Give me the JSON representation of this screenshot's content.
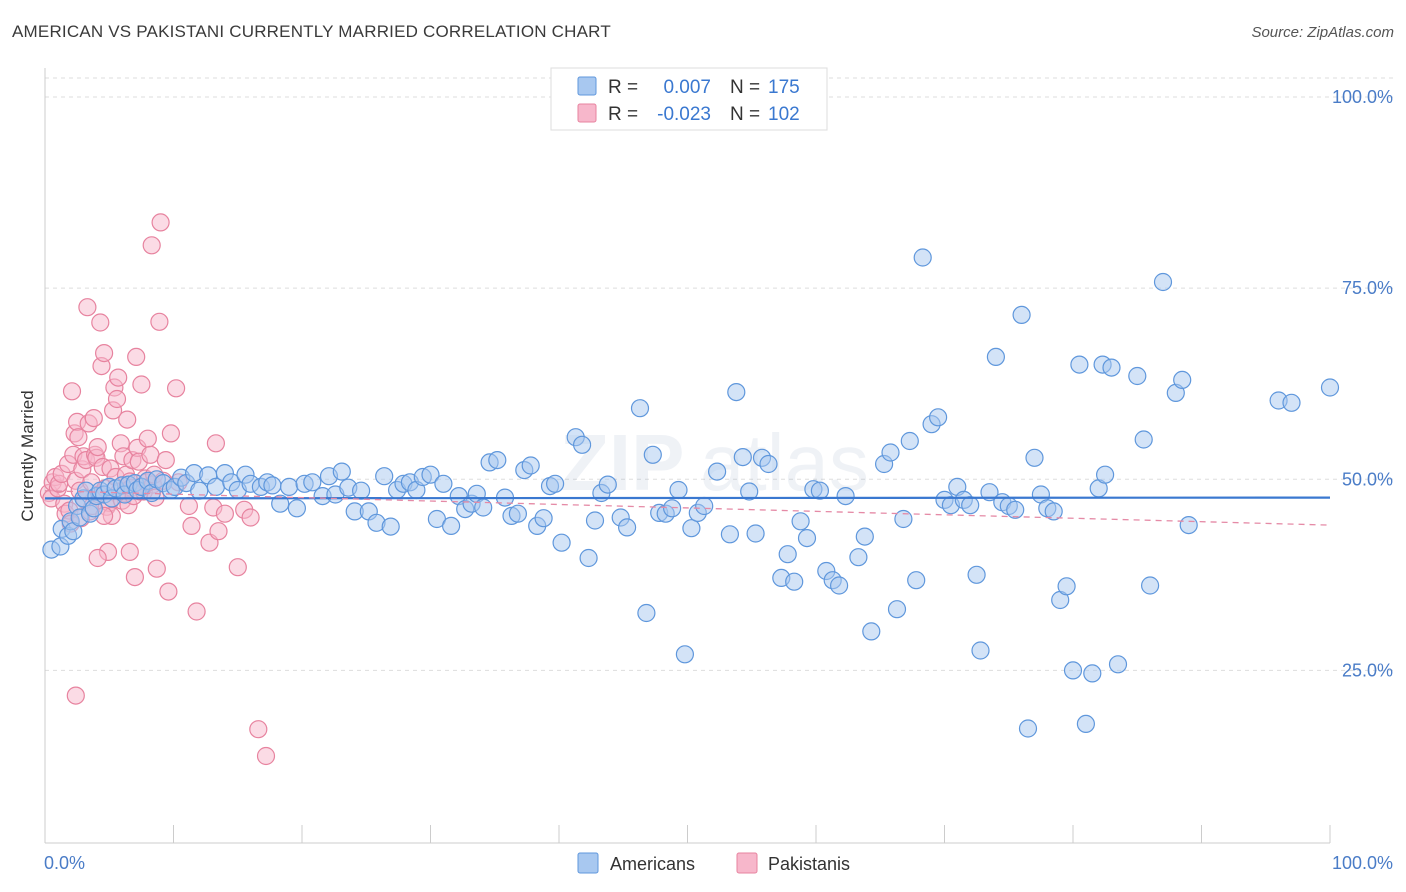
{
  "title": "AMERICAN VS PAKISTANI CURRENTLY MARRIED CORRELATION CHART",
  "source": "Source: ZipAtlas.com",
  "watermark": "ZIPatlas",
  "legend_top": {
    "americans": {
      "r_label": "R =",
      "r_value": "0.007",
      "n_label": "N =",
      "n_value": "175"
    },
    "pakistanis": {
      "r_label": "R =",
      "r_value": "-0.023",
      "n_label": "N =",
      "n_value": "102"
    }
  },
  "legend_bottom": {
    "americans": "Americans",
    "pakistanis": "Pakistanis"
  },
  "colors": {
    "blue_fill": "#a8c8f0",
    "blue_stroke": "#5f97dc",
    "blue_line": "#3a78d0",
    "pink_fill": "#f7b7cb",
    "pink_stroke": "#e7839f",
    "pink_line": "#e58aa6",
    "axis_text": "#4a7cc7",
    "grid": "#dddddd"
  },
  "chart_data": {
    "type": "scatter",
    "title": "AMERICAN VS PAKISTANI CURRENTLY MARRIED CORRELATION CHART",
    "xlabel": "",
    "ylabel": "Currently Married",
    "xlim": [
      0,
      100
    ],
    "ylim": [
      0,
      100
    ],
    "x_tick_labels": [
      "0.0%",
      "100.0%"
    ],
    "y_ticks": [
      25,
      50,
      75,
      100
    ],
    "y_tick_labels": [
      "25.0%",
      "50.0%",
      "75.0%",
      "100.0%"
    ],
    "grid": true,
    "legend_position": "top-center",
    "series": [
      {
        "name": "Americans",
        "r": 0.007,
        "n": 175,
        "trend": [
          [
            0,
            47.5
          ],
          [
            100,
            47.6
          ]
        ],
        "points": [
          [
            0.5,
            40.8
          ],
          [
            1.2,
            41.2
          ],
          [
            1.3,
            43.5
          ],
          [
            1.8,
            42.6
          ],
          [
            2.0,
            44.5
          ],
          [
            2.2,
            43.2
          ],
          [
            2.5,
            46.5
          ],
          [
            2.7,
            45.0
          ],
          [
            3.0,
            47.5
          ],
          [
            3.2,
            48.5
          ],
          [
            3.5,
            45.5
          ],
          [
            3.8,
            46.2
          ],
          [
            4.0,
            47.8
          ],
          [
            4.3,
            48.5
          ],
          [
            4.6,
            48.0
          ],
          [
            5.0,
            49.0
          ],
          [
            5.2,
            47.5
          ],
          [
            5.5,
            48.8
          ],
          [
            6.0,
            49.2
          ],
          [
            6.2,
            48.0
          ],
          [
            6.5,
            49.3
          ],
          [
            7.0,
            49.5
          ],
          [
            7.2,
            48.6
          ],
          [
            7.5,
            49.0
          ],
          [
            8.0,
            49.8
          ],
          [
            8.3,
            48.2
          ],
          [
            8.7,
            50.0
          ],
          [
            9.2,
            49.5
          ],
          [
            9.8,
            48.6
          ],
          [
            10.1,
            49.0
          ],
          [
            10.6,
            50.2
          ],
          [
            11.0,
            49.5
          ],
          [
            11.6,
            50.8
          ],
          [
            12.0,
            48.5
          ],
          [
            12.7,
            50.5
          ],
          [
            13.3,
            49.0
          ],
          [
            14.0,
            50.8
          ],
          [
            14.5,
            49.6
          ],
          [
            15.0,
            48.6
          ],
          [
            15.6,
            50.6
          ],
          [
            16.0,
            49.4
          ],
          [
            16.8,
            49.0
          ],
          [
            17.3,
            49.6
          ],
          [
            17.7,
            49.2
          ],
          [
            18.3,
            46.8
          ],
          [
            19.0,
            49.0
          ],
          [
            19.6,
            46.2
          ],
          [
            20.2,
            49.4
          ],
          [
            20.8,
            49.6
          ],
          [
            21.6,
            47.8
          ],
          [
            22.1,
            50.4
          ],
          [
            22.6,
            48.0
          ],
          [
            23.1,
            51.0
          ],
          [
            23.6,
            48.9
          ],
          [
            24.1,
            45.8
          ],
          [
            24.6,
            48.5
          ],
          [
            25.2,
            45.8
          ],
          [
            25.8,
            44.3
          ],
          [
            26.4,
            50.4
          ],
          [
            26.9,
            43.8
          ],
          [
            27.4,
            48.6
          ],
          [
            27.9,
            49.4
          ],
          [
            28.4,
            49.6
          ],
          [
            28.9,
            48.6
          ],
          [
            29.4,
            50.3
          ],
          [
            30.0,
            50.6
          ],
          [
            30.5,
            44.8
          ],
          [
            31.0,
            49.4
          ],
          [
            31.6,
            43.9
          ],
          [
            32.2,
            47.8
          ],
          [
            32.7,
            46.1
          ],
          [
            33.2,
            46.8
          ],
          [
            33.6,
            48.1
          ],
          [
            34.1,
            46.3
          ],
          [
            34.6,
            52.2
          ],
          [
            35.2,
            52.5
          ],
          [
            35.8,
            47.6
          ],
          [
            36.3,
            45.2
          ],
          [
            36.8,
            45.5
          ],
          [
            37.3,
            51.2
          ],
          [
            37.8,
            51.8
          ],
          [
            38.3,
            43.9
          ],
          [
            38.8,
            44.9
          ],
          [
            39.3,
            49.1
          ],
          [
            39.7,
            49.4
          ],
          [
            40.2,
            41.7
          ],
          [
            41.3,
            55.5
          ],
          [
            41.8,
            54.5
          ],
          [
            42.3,
            39.7
          ],
          [
            42.8,
            44.6
          ],
          [
            43.3,
            48.2
          ],
          [
            43.8,
            49.3
          ],
          [
            44.8,
            45.0
          ],
          [
            45.3,
            43.7
          ],
          [
            46.3,
            59.3
          ],
          [
            46.8,
            32.5
          ],
          [
            47.3,
            53.2
          ],
          [
            47.8,
            45.6
          ],
          [
            48.3,
            45.5
          ],
          [
            48.8,
            46.2
          ],
          [
            49.3,
            48.6
          ],
          [
            49.8,
            27.1
          ],
          [
            50.3,
            43.6
          ],
          [
            50.8,
            45.6
          ],
          [
            51.3,
            46.5
          ],
          [
            52.3,
            51.0
          ],
          [
            53.3,
            42.8
          ],
          [
            53.8,
            61.4
          ],
          [
            54.3,
            52.9
          ],
          [
            54.8,
            48.4
          ],
          [
            55.3,
            42.9
          ],
          [
            55.8,
            52.8
          ],
          [
            56.3,
            52.0
          ],
          [
            57.3,
            37.1
          ],
          [
            57.8,
            40.2
          ],
          [
            58.3,
            36.6
          ],
          [
            58.8,
            44.5
          ],
          [
            59.3,
            42.3
          ],
          [
            59.8,
            48.7
          ],
          [
            60.3,
            48.5
          ],
          [
            60.8,
            38.0
          ],
          [
            61.3,
            36.8
          ],
          [
            61.8,
            36.1
          ],
          [
            62.3,
            47.8
          ],
          [
            63.3,
            39.8
          ],
          [
            63.8,
            42.5
          ],
          [
            64.3,
            30.1
          ],
          [
            65.3,
            52.0
          ],
          [
            65.8,
            53.5
          ],
          [
            66.3,
            33.0
          ],
          [
            66.8,
            44.8
          ],
          [
            67.3,
            55.0
          ],
          [
            67.8,
            36.8
          ],
          [
            68.3,
            79.0
          ],
          [
            69.0,
            57.2
          ],
          [
            69.5,
            58.1
          ],
          [
            70.0,
            47.3
          ],
          [
            70.5,
            46.6
          ],
          [
            71.0,
            49.0
          ],
          [
            71.5,
            47.3
          ],
          [
            72.0,
            46.6
          ],
          [
            72.5,
            37.5
          ],
          [
            72.8,
            27.6
          ],
          [
            73.5,
            48.3
          ],
          [
            74.0,
            66.0
          ],
          [
            74.5,
            47.0
          ],
          [
            75.0,
            46.5
          ],
          [
            75.5,
            46.0
          ],
          [
            76.0,
            71.5
          ],
          [
            76.5,
            17.4
          ],
          [
            77.0,
            52.8
          ],
          [
            77.5,
            48.0
          ],
          [
            78.0,
            46.2
          ],
          [
            78.5,
            45.8
          ],
          [
            79.0,
            34.2
          ],
          [
            79.5,
            36.0
          ],
          [
            80.0,
            25.0
          ],
          [
            80.5,
            65.0
          ],
          [
            81.0,
            18.0
          ],
          [
            81.5,
            24.6
          ],
          [
            82.0,
            48.8
          ],
          [
            82.3,
            65.0
          ],
          [
            82.5,
            50.6
          ],
          [
            83.0,
            64.6
          ],
          [
            83.5,
            25.8
          ],
          [
            85.0,
            63.5
          ],
          [
            85.5,
            55.2
          ],
          [
            86.0,
            36.1
          ],
          [
            87.0,
            75.8
          ],
          [
            88.0,
            61.3
          ],
          [
            88.5,
            63.0
          ],
          [
            89.0,
            44.0
          ],
          [
            96.0,
            60.3
          ],
          [
            97.0,
            60.0
          ],
          [
            100.0,
            62.0
          ]
        ]
      },
      {
        "name": "Pakistanis",
        "r": -0.023,
        "n": 102,
        "trend": [
          [
            0,
            48.5
          ],
          [
            100,
            44.0
          ]
        ],
        "points": [
          [
            0.3,
            48.2
          ],
          [
            0.5,
            47.5
          ],
          [
            0.6,
            49.6
          ],
          [
            0.8,
            50.3
          ],
          [
            1.0,
            48.8
          ],
          [
            1.1,
            49.4
          ],
          [
            1.3,
            50.7
          ],
          [
            1.5,
            46.8
          ],
          [
            1.6,
            45.5
          ],
          [
            1.8,
            52.0
          ],
          [
            1.9,
            45.9
          ],
          [
            2.0,
            44.2
          ],
          [
            2.1,
            61.5
          ],
          [
            2.2,
            53.2
          ],
          [
            2.3,
            56.0
          ],
          [
            2.4,
            49.8
          ],
          [
            2.5,
            57.5
          ],
          [
            2.6,
            55.5
          ],
          [
            2.7,
            48.5
          ],
          [
            2.8,
            44.9
          ],
          [
            2.9,
            51.3
          ],
          [
            3.0,
            53.0
          ],
          [
            3.1,
            47.3
          ],
          [
            3.2,
            52.5
          ],
          [
            3.3,
            72.5
          ],
          [
            3.4,
            57.3
          ],
          [
            3.5,
            45.8
          ],
          [
            3.6,
            49.6
          ],
          [
            3.7,
            46.5
          ],
          [
            3.8,
            58.0
          ],
          [
            3.9,
            53.2
          ],
          [
            4.0,
            52.8
          ],
          [
            4.1,
            54.2
          ],
          [
            4.2,
            48.0
          ],
          [
            4.3,
            70.5
          ],
          [
            4.4,
            64.8
          ],
          [
            4.5,
            51.6
          ],
          [
            4.6,
            66.5
          ],
          [
            4.7,
            48.8
          ],
          [
            4.8,
            46.4
          ],
          [
            4.9,
            40.5
          ],
          [
            5.0,
            46.9
          ],
          [
            5.1,
            51.4
          ],
          [
            5.2,
            45.2
          ],
          [
            5.3,
            59.0
          ],
          [
            5.4,
            62.0
          ],
          [
            5.5,
            50.3
          ],
          [
            5.6,
            60.5
          ],
          [
            5.7,
            63.3
          ],
          [
            5.8,
            48.4
          ],
          [
            5.9,
            54.7
          ],
          [
            6.0,
            47.2
          ],
          [
            6.1,
            53.0
          ],
          [
            6.2,
            48.2
          ],
          [
            6.3,
            50.6
          ],
          [
            6.4,
            57.8
          ],
          [
            6.5,
            46.6
          ],
          [
            6.6,
            49.7
          ],
          [
            6.7,
            48.9
          ],
          [
            6.8,
            52.5
          ],
          [
            6.9,
            47.8
          ],
          [
            7.0,
            37.2
          ],
          [
            7.1,
            66.0
          ],
          [
            7.2,
            54.1
          ],
          [
            7.3,
            52.3
          ],
          [
            7.4,
            48.4
          ],
          [
            7.5,
            62.4
          ],
          [
            7.6,
            49.0
          ],
          [
            7.7,
            48.4
          ],
          [
            7.8,
            50.1
          ],
          [
            7.9,
            49.6
          ],
          [
            8.0,
            55.3
          ],
          [
            8.2,
            53.2
          ],
          [
            8.3,
            80.6
          ],
          [
            8.4,
            49.3
          ],
          [
            8.5,
            50.6
          ],
          [
            8.6,
            47.6
          ],
          [
            8.7,
            38.3
          ],
          [
            8.9,
            70.6
          ],
          [
            9.0,
            83.6
          ],
          [
            9.2,
            49.8
          ],
          [
            9.4,
            52.5
          ],
          [
            9.6,
            35.3
          ],
          [
            9.8,
            56.0
          ],
          [
            10.2,
            61.9
          ],
          [
            10.4,
            49.6
          ],
          [
            11.2,
            46.5
          ],
          [
            11.4,
            43.9
          ],
          [
            11.8,
            32.7
          ],
          [
            12.8,
            41.7
          ],
          [
            13.1,
            46.3
          ],
          [
            13.3,
            54.7
          ],
          [
            13.5,
            43.2
          ],
          [
            14.0,
            45.5
          ],
          [
            15.0,
            38.5
          ],
          [
            15.5,
            46.0
          ],
          [
            16.0,
            45.0
          ],
          [
            16.6,
            17.3
          ],
          [
            17.2,
            13.8
          ],
          [
            2.4,
            21.7
          ],
          [
            4.1,
            39.7
          ],
          [
            4.6,
            45.2
          ],
          [
            6.6,
            40.5
          ]
        ]
      }
    ]
  }
}
